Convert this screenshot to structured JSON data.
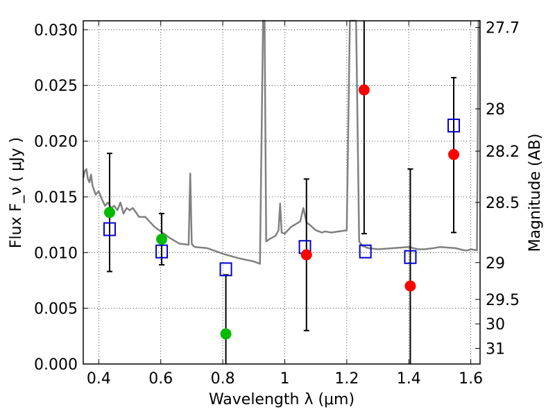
{
  "chart_data": {
    "type": "scatter",
    "xlabel": "Wavelength  λ (μm)",
    "ylabel": "Flux  F_ν  ( μJy )",
    "ylabel_right": "Magnitude (AB)",
    "xlim": [
      0.35,
      1.63
    ],
    "ylim": [
      0.0,
      0.0308
    ],
    "grid": true,
    "x_ticks": [
      {
        "value": 0.4,
        "label": "0.4"
      },
      {
        "value": 0.6,
        "label": "0.6"
      },
      {
        "value": 0.8,
        "label": "0.8"
      },
      {
        "value": 1.0,
        "label": "1"
      },
      {
        "value": 1.2,
        "label": "1.2"
      },
      {
        "value": 1.4,
        "label": "1.4"
      },
      {
        "value": 1.6,
        "label": "1.6"
      }
    ],
    "y_ticks": [
      {
        "value": 0.0,
        "label": "0.000"
      },
      {
        "value": 0.005,
        "label": "0.005"
      },
      {
        "value": 0.01,
        "label": "0.010"
      },
      {
        "value": 0.015,
        "label": "0.015"
      },
      {
        "value": 0.02,
        "label": "0.020"
      },
      {
        "value": 0.025,
        "label": "0.025"
      },
      {
        "value": 0.03,
        "label": "0.030"
      }
    ],
    "right_ticks": [
      {
        "flux": 0.0302,
        "label": "27.7"
      },
      {
        "flux": 0.0229,
        "label": "28"
      },
      {
        "flux": 0.0191,
        "label": "28.2"
      },
      {
        "flux": 0.0145,
        "label": "28.5"
      },
      {
        "flux": 0.0091,
        "label": "29"
      },
      {
        "flux": 0.0058,
        "label": "29.5"
      },
      {
        "flux": 0.0036,
        "label": "30"
      },
      {
        "flux": 0.0014,
        "label": "31"
      }
    ],
    "spectrum": {
      "color": "#808080",
      "x": [
        0.35,
        0.355,
        0.36,
        0.365,
        0.37,
        0.375,
        0.38,
        0.39,
        0.4,
        0.41,
        0.42,
        0.43,
        0.44,
        0.45,
        0.46,
        0.47,
        0.48,
        0.49,
        0.5,
        0.51,
        0.52,
        0.53,
        0.55,
        0.58,
        0.6,
        0.63,
        0.66,
        0.69,
        0.695,
        0.7,
        0.705,
        0.71,
        0.75,
        0.8,
        0.85,
        0.9,
        0.92,
        0.93,
        0.935,
        0.94,
        0.95,
        0.97,
        0.98,
        0.985,
        0.99,
        1.0,
        1.02,
        1.05,
        1.06,
        1.07,
        1.08,
        1.1,
        1.12,
        1.13,
        1.15,
        1.2,
        1.21,
        1.22,
        1.23,
        1.24,
        1.25,
        1.26,
        1.27,
        1.3,
        1.35,
        1.4,
        1.43,
        1.45,
        1.48,
        1.5,
        1.55,
        1.58,
        1.59,
        1.6,
        1.62,
        1.625,
        1.63
      ],
      "y": [
        0.0167,
        0.0173,
        0.0175,
        0.0166,
        0.0163,
        0.017,
        0.016,
        0.0152,
        0.0155,
        0.0148,
        0.0142,
        0.0145,
        0.014,
        0.0142,
        0.0138,
        0.0145,
        0.0135,
        0.014,
        0.0138,
        0.014,
        0.0136,
        0.0132,
        0.0132,
        0.0123,
        0.0119,
        0.0113,
        0.0108,
        0.0107,
        0.0171,
        0.0108,
        0.0106,
        0.0105,
        0.0104,
        0.0099,
        0.0095,
        0.0092,
        0.009,
        0.031,
        0.031,
        0.011,
        0.0112,
        0.0115,
        0.012,
        0.0144,
        0.0118,
        0.0117,
        0.0123,
        0.0128,
        0.014,
        0.0127,
        0.0125,
        0.012,
        0.0118,
        0.0119,
        0.0118,
        0.012,
        0.031,
        0.031,
        0.031,
        0.011,
        0.0106,
        0.0105,
        0.0104,
        0.0103,
        0.0104,
        0.0105,
        0.0103,
        0.0103,
        0.0104,
        0.0105,
        0.0104,
        0.0102,
        0.0102,
        0.0103,
        0.0102,
        0.031,
        0.031
      ]
    },
    "model_points": {
      "marker": "open-square",
      "color": "#0000cc",
      "x": [
        0.435,
        0.603,
        0.81,
        1.065,
        1.26,
        1.405,
        1.545
      ],
      "y": [
        0.0121,
        0.0101,
        0.0085,
        0.0105,
        0.0101,
        0.0096,
        0.0214
      ]
    },
    "observed_green": {
      "color": "#00bb00",
      "x": [
        0.435,
        0.603,
        0.81
      ],
      "y": [
        0.0136,
        0.0112,
        0.0027
      ],
      "err_low": [
        0.0083,
        0.0089,
        0.0
      ],
      "err_high": [
        0.0189,
        0.0135,
        0.008
      ]
    },
    "observed_red": {
      "color": "#ff0000",
      "x": [
        1.07,
        1.256,
        1.405,
        1.545
      ],
      "y": [
        0.0098,
        0.0246,
        0.007,
        0.0188
      ],
      "err_low": [
        0.003,
        0.0117,
        0.0,
        0.0118
      ],
      "err_high": [
        0.0166,
        0.032,
        0.0175,
        0.0257
      ]
    }
  }
}
